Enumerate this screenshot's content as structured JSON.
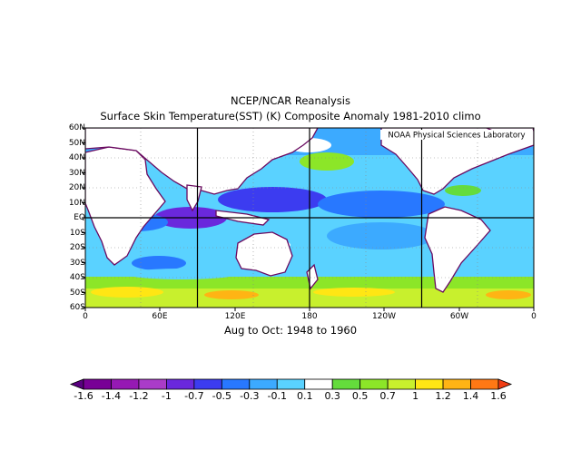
{
  "title": {
    "line1": "NCEP/NCAR Reanalysis",
    "line2": "Surface Skin Temperature(SST) (K) Composite Anomaly 1981-2010 climo"
  },
  "credit": "NOAA Physical Sciences Laboratory",
  "period": "Aug to Oct: 1948 to 1960",
  "lat_labels": [
    "60N",
    "50N",
    "40N",
    "30N",
    "20N",
    "10N",
    "EQ",
    "10S",
    "20S",
    "30S",
    "40S",
    "50S",
    "60S"
  ],
  "lon_labels": [
    "0",
    "60E",
    "120E",
    "180",
    "120W",
    "60W",
    "0"
  ],
  "colorbar": {
    "labels": [
      "-1.6",
      "-1.4",
      "-1.2",
      "-1",
      "-0.7",
      "-0.5",
      "-0.3",
      "-0.1",
      "0.1",
      "0.3",
      "0.5",
      "0.7",
      "1",
      "1.2",
      "1.4",
      "1.6"
    ],
    "colors": [
      "#5a0080",
      "#780096",
      "#9619b4",
      "#aa3cc8",
      "#6a28dc",
      "#3c3cf0",
      "#2878ff",
      "#3caaff",
      "#5ad2ff",
      "#ffffff",
      "#64dc3c",
      "#8ce628",
      "#c8f02d",
      "#ffe614",
      "#ffb414",
      "#ff7814",
      "#f03c14"
    ]
  }
}
